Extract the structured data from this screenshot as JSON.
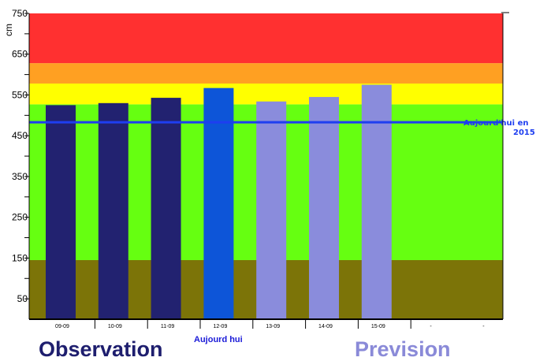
{
  "chart_data": {
    "type": "bar",
    "ylabel": "cm",
    "ylim": [
      0,
      750
    ],
    "yticks": [
      "50",
      "150",
      "250",
      "350",
      "450",
      "550",
      "650",
      "750"
    ],
    "categories": [
      "09-09",
      "10-09",
      "11-09",
      "12-09",
      "13-09",
      "14-09",
      "15-09",
      "-",
      "-"
    ],
    "values": [
      525,
      530,
      543,
      567,
      534,
      545,
      575,
      null,
      null
    ],
    "bar_kinds": [
      "observation",
      "observation",
      "observation",
      "today",
      "prevision",
      "prevision",
      "prevision",
      null,
      null
    ],
    "kind_colors": {
      "observation": "#222270",
      "today": "#0d55d8",
      "prevision": "#8a8cdc"
    },
    "bands": [
      {
        "from": 0,
        "to": 145,
        "color": "#7c7408"
      },
      {
        "from": 145,
        "to": 527,
        "color": "#66ff11"
      },
      {
        "from": 527,
        "to": 578,
        "color": "#ffff00"
      },
      {
        "from": 578,
        "to": 628,
        "color": "#ffa022"
      },
      {
        "from": 628,
        "to": 750,
        "color": "#ff3030"
      }
    ],
    "reference_line": {
      "value": 483,
      "label_line1": "Aujourd'hui en",
      "label_line2": "2015",
      "color": "#1e3ef0"
    },
    "annotations": {
      "today": "Aujourd hui",
      "observation": "Observation",
      "prevision": "Prevision"
    }
  }
}
